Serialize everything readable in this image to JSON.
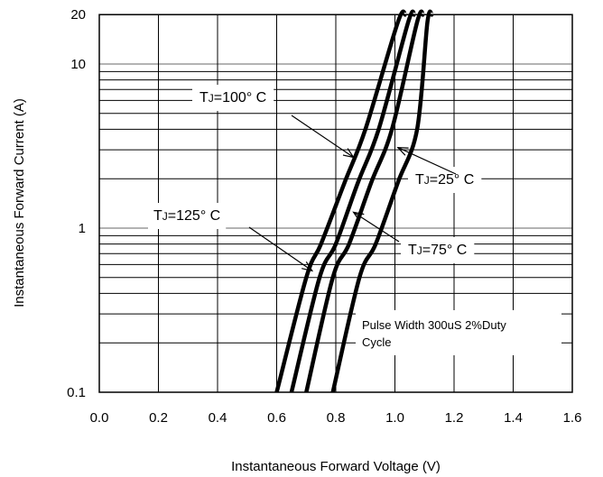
{
  "chart_data": {
    "type": "line",
    "title": "",
    "xlabel": "Instantaneous Forward Voltage (V)",
    "ylabel": "Instantaneous Forward Current (A)",
    "xlim": [
      0.0,
      1.6
    ],
    "ylim": [
      0.1,
      20
    ],
    "yscale": "log",
    "grid": true,
    "x_ticks": [
      "0.0",
      "0.2",
      "0.4",
      "0.6",
      "0.8",
      "1.0",
      "1.2",
      "1.4",
      "1.6"
    ],
    "y_ticks": [
      {
        "value": 0.1,
        "label": "0.1"
      },
      {
        "value": 1,
        "label": "1"
      },
      {
        "value": 10,
        "label": "10"
      },
      {
        "value": 20,
        "label": "20"
      }
    ],
    "series": [
      {
        "name": "TJ=125° C",
        "x": [
          0.6,
          0.7,
          0.75,
          0.83,
          0.9,
          1.01,
          1.035
        ],
        "y": [
          0.1,
          0.5,
          0.8,
          1.9,
          4.0,
          18.0,
          20.0
        ]
      },
      {
        "name": "TJ=100° C",
        "x": [
          0.65,
          0.745,
          0.8,
          0.875,
          0.945,
          1.045,
          1.065
        ],
        "y": [
          0.1,
          0.5,
          0.8,
          1.9,
          4.0,
          18.0,
          20.0
        ]
      },
      {
        "name": "TJ=75° C",
        "x": [
          0.7,
          0.79,
          0.845,
          0.92,
          0.99,
          1.075,
          1.095
        ],
        "y": [
          0.1,
          0.5,
          0.8,
          1.9,
          4.0,
          18.0,
          20.0
        ]
      },
      {
        "name": "TJ=25° C",
        "x": [
          0.79,
          0.88,
          0.935,
          1.01,
          1.075,
          1.11,
          1.125
        ],
        "y": [
          0.1,
          0.5,
          0.8,
          1.9,
          4.0,
          18.0,
          20.0
        ]
      }
    ],
    "annotations": [
      {
        "id": "tj100",
        "prefix": "T",
        "sub": "J",
        "rest": "=100° C",
        "target_series": "TJ=100° C",
        "target": [
          0.86,
          2.7
        ]
      },
      {
        "id": "tj25",
        "prefix": "T",
        "sub": "J",
        "rest": "=25° C",
        "target_series": "TJ=25° C",
        "target": [
          1.01,
          3.1
        ]
      },
      {
        "id": "tj125",
        "prefix": "T",
        "sub": "J",
        "rest": "=125° C",
        "target_series": "TJ=125° C",
        "target": [
          0.72,
          0.55
        ]
      },
      {
        "id": "tj75",
        "prefix": "T",
        "sub": "J",
        "rest": "=75° C",
        "target_series": "TJ=75° C",
        "target": [
          0.86,
          1.25
        ]
      }
    ],
    "note": {
      "line1": "Pulse Width 300uS 2%Duty",
      "line2": "Cycle"
    }
  }
}
